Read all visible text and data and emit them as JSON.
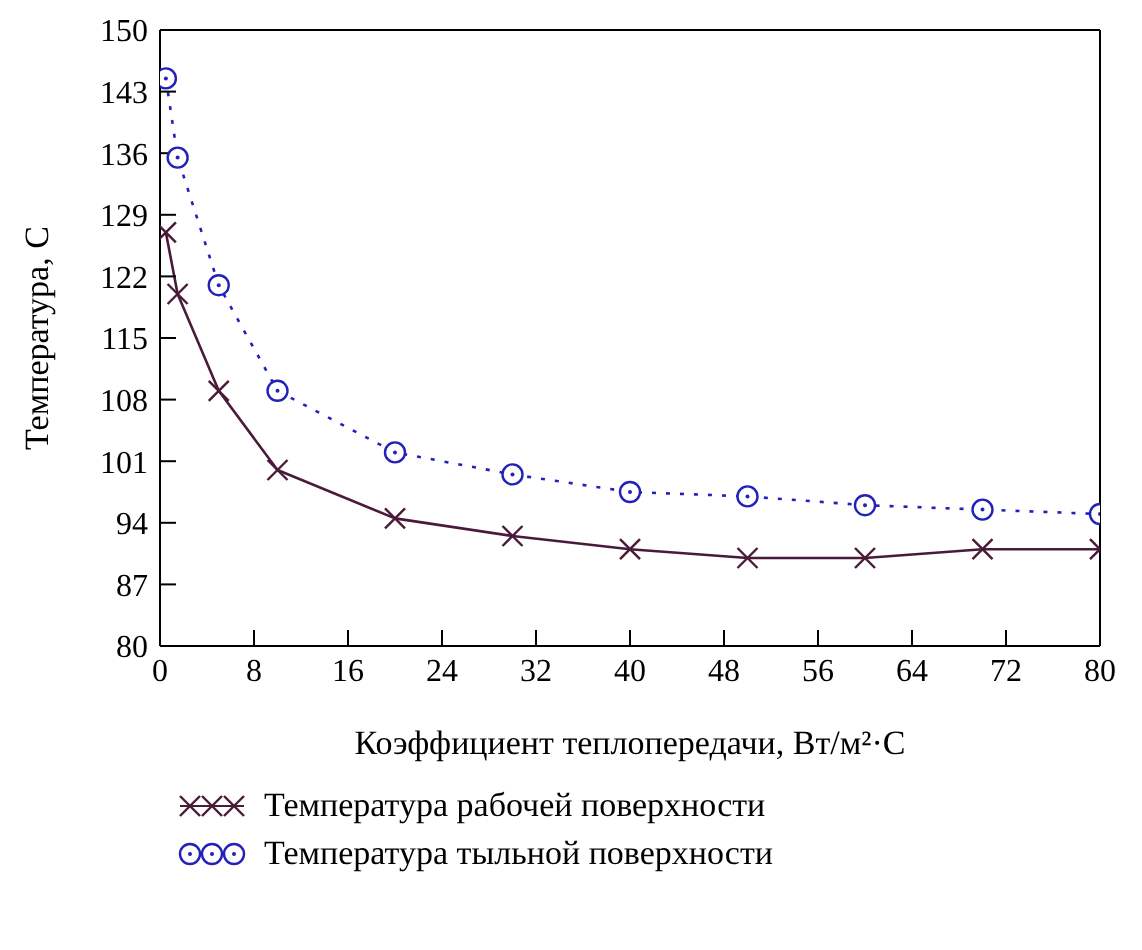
{
  "chart_data": {
    "type": "line",
    "xlabel": "Коэффициент теплопередачи, Вт/м²·С",
    "ylabel": "Температура, С",
    "x": [
      0.5,
      1.5,
      5,
      10,
      20,
      30,
      40,
      50,
      60,
      70,
      80
    ],
    "xlim": [
      0,
      80
    ],
    "xticks": [
      0,
      8,
      16,
      24,
      32,
      40,
      48,
      56,
      64,
      72,
      80
    ],
    "ylim": [
      80,
      150
    ],
    "yticks": [
      80,
      87,
      94,
      101,
      108,
      115,
      122,
      129,
      136,
      143,
      150
    ],
    "grid": false,
    "legend": "bottom",
    "series": [
      {
        "name": "Температура рабочей поверхности",
        "color": "#4a1a3a",
        "marker": "cross",
        "line_style": "solid",
        "values": [
          127,
          120,
          109,
          100,
          94.5,
          92.5,
          91,
          90,
          90,
          91,
          91
        ]
      },
      {
        "name": "Температура тыльной поверхности",
        "color": "#2222bb",
        "marker": "circle",
        "line_style": "dotted",
        "values": [
          144.5,
          135.5,
          121,
          109,
          102,
          99.5,
          97.5,
          97,
          96,
          95.5,
          95
        ]
      }
    ]
  }
}
